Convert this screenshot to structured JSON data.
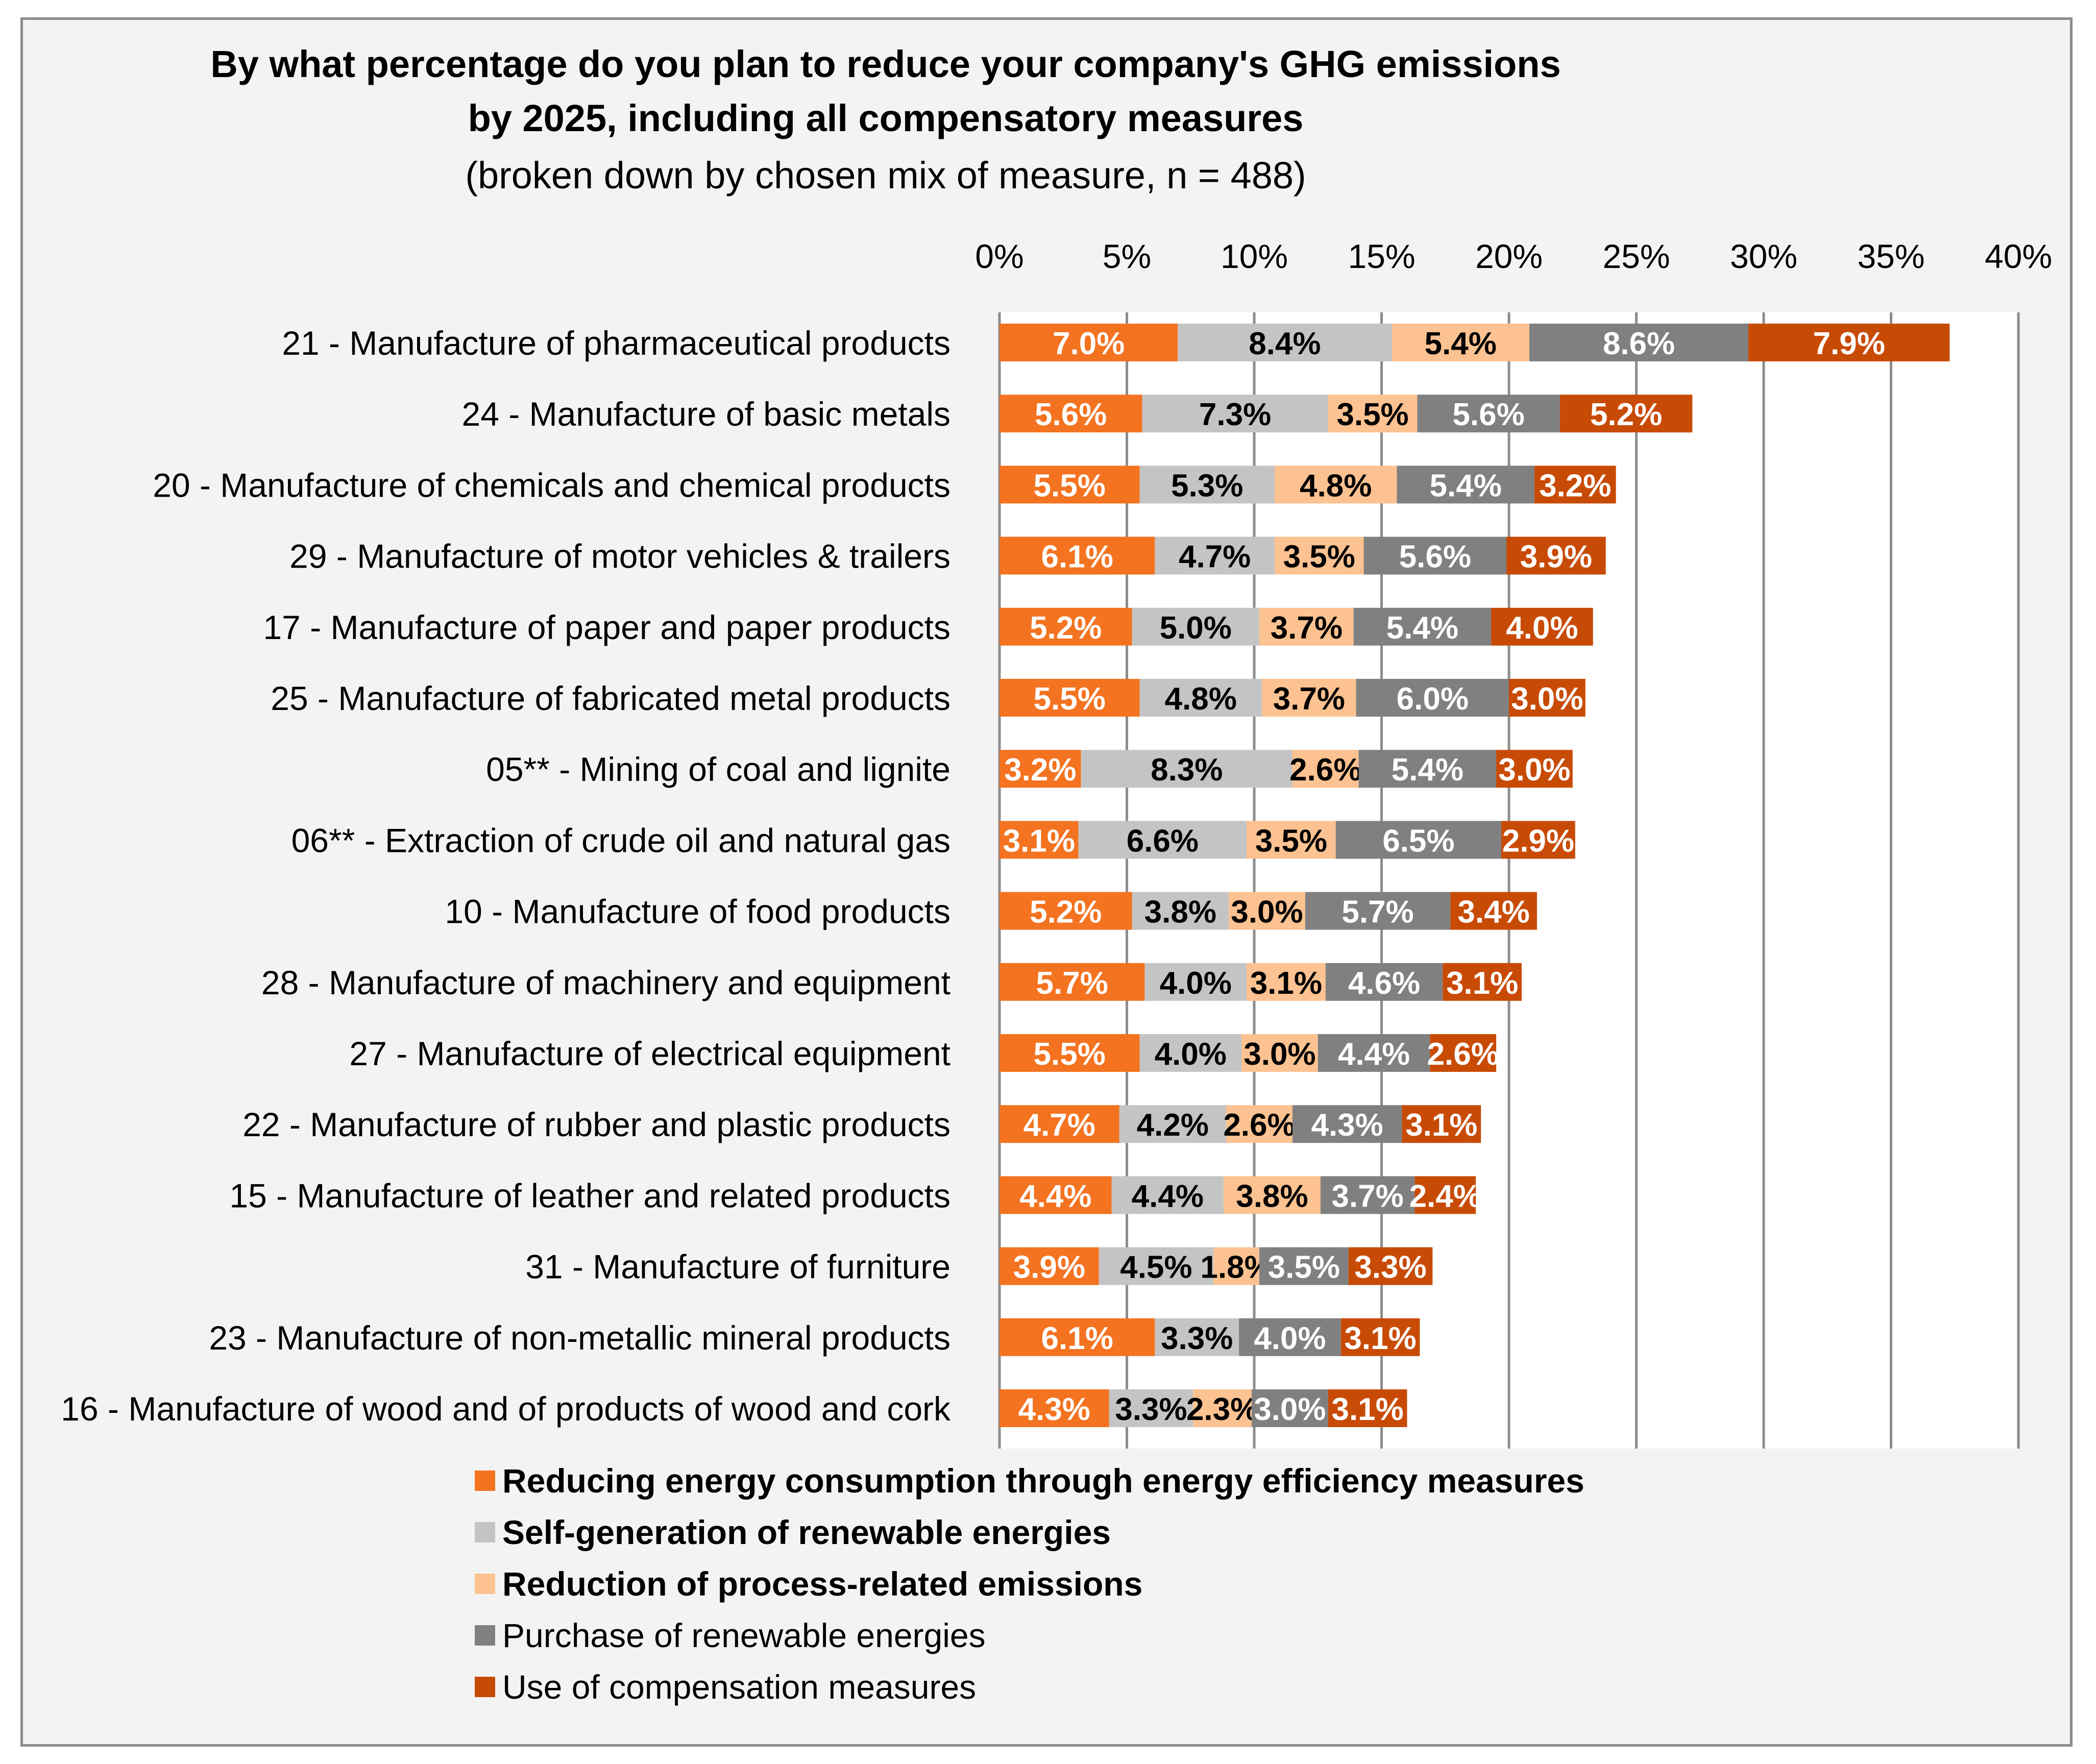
{
  "chart_data": {
    "type": "bar",
    "orientation": "horizontal",
    "stacked": true,
    "title_line1": "By what percentage do you plan to reduce your company's GHG emissions",
    "title_line2": "by 2025, including all compensatory measures",
    "subtitle": "(broken down by chosen mix of measure, n = 488)",
    "xlim": [
      0,
      40
    ],
    "x_ticks": [
      "0%",
      "5%",
      "10%",
      "15%",
      "20%",
      "25%",
      "30%",
      "35%",
      "40%"
    ],
    "x_tick_values": [
      0,
      5,
      10,
      15,
      20,
      25,
      30,
      35,
      40
    ],
    "grid": true,
    "legend_position": "bottom",
    "categories": [
      "21 - Manufacture of pharmaceutical products",
      "24 - Manufacture of basic metals",
      "20 - Manufacture of chemicals and chemical products",
      "29 - Manufacture of motor vehicles & trailers",
      "17 - Manufacture of paper and paper products",
      "25 - Manufacture of fabricated metal products",
      "05** - Mining of coal and lignite",
      "06** - Extraction of crude oil and natural gas",
      "10 - Manufacture of food products",
      "28 - Manufacture of machinery and equipment",
      "27 - Manufacture of electrical equipment",
      "22 - Manufacture of rubber and plastic products",
      "15 - Manufacture of leather and related products",
      "31 - Manufacture of furniture",
      "23 - Manufacture of non-metallic mineral products",
      "16 - Manufacture of wood and of products of wood and cork"
    ],
    "series": [
      {
        "name": "Reducing energy consumption through energy efficiency measures",
        "color": "#f47320",
        "label_color": "#ffffff",
        "legend_bold": true,
        "values": [
          7.0,
          5.6,
          5.5,
          6.1,
          5.2,
          5.5,
          3.2,
          3.1,
          5.2,
          5.7,
          5.5,
          4.7,
          4.4,
          3.9,
          6.1,
          4.3
        ],
        "labels": [
          "7.0%",
          "5.6%",
          "5.5%",
          "6.1%",
          "5.2%",
          "5.5%",
          "3.2%",
          "3.1%",
          "5.2%",
          "5.7%",
          "5.5%",
          "4.7%",
          "4.4%",
          "3.9%",
          "6.1%",
          "4.3%"
        ]
      },
      {
        "name": "Self-generation of renewable energies",
        "color": "#c4c4c4",
        "label_color": "#000000",
        "legend_bold": true,
        "values": [
          8.4,
          7.3,
          5.3,
          4.7,
          5.0,
          4.8,
          8.3,
          6.6,
          3.8,
          4.0,
          4.0,
          4.2,
          4.4,
          4.5,
          3.3,
          3.3
        ],
        "labels": [
          "8.4%",
          "7.3%",
          "5.3%",
          "4.7%",
          "5.0%",
          "4.8%",
          "8.3%",
          "6.6%",
          "3.8%",
          "4.0%",
          "4.0%",
          "4.2%",
          "4.4%",
          "4.5%",
          "3.3%",
          "3.3%"
        ]
      },
      {
        "name": "Reduction of process-related emissions",
        "color": "#fcc291",
        "label_color": "#000000",
        "legend_bold": true,
        "values": [
          5.4,
          3.5,
          4.8,
          3.5,
          3.7,
          3.7,
          2.6,
          3.5,
          3.0,
          3.1,
          3.0,
          2.6,
          3.8,
          1.8,
          0,
          2.3
        ],
        "labels": [
          "5.4%",
          "3.5%",
          "4.8%",
          "3.5%",
          "3.7%",
          "3.7%",
          "2.6%",
          "3.5%",
          "3.0%",
          "3.1%",
          "3.0%",
          "2.6%",
          "3.8%",
          "1.8%",
          "",
          "2.3%"
        ]
      },
      {
        "name": "Purchase of renewable energies",
        "color": "#808080",
        "label_color": "#ffffff",
        "legend_bold": false,
        "values": [
          8.6,
          5.6,
          5.4,
          5.6,
          5.4,
          6.0,
          5.4,
          6.5,
          5.7,
          4.6,
          4.4,
          4.3,
          3.7,
          3.5,
          4.0,
          3.0
        ],
        "labels": [
          "8.6%",
          "5.6%",
          "5.4%",
          "5.6%",
          "5.4%",
          "6.0%",
          "5.4%",
          "6.5%",
          "5.7%",
          "4.6%",
          "4.4%",
          "4.3%",
          "3.7%",
          "3.5%",
          "4.0%",
          "3.0%"
        ]
      },
      {
        "name": "Use of compensation measures",
        "color": "#c84b05",
        "label_color": "#ffffff",
        "legend_bold": false,
        "values": [
          7.9,
          5.2,
          3.2,
          3.9,
          4.0,
          3.0,
          3.0,
          2.9,
          3.4,
          3.1,
          2.6,
          3.1,
          2.4,
          3.3,
          3.1,
          3.1
        ],
        "labels": [
          "7.9%",
          "5.2%",
          "3.2%",
          "3.9%",
          "4.0%",
          "3.0%",
          "3.0%",
          "2.9%",
          "3.4%",
          "3.1%",
          "2.6%",
          "3.1%",
          "2.4%",
          "3.3%",
          "3.1%",
          "3.1%"
        ]
      }
    ]
  }
}
